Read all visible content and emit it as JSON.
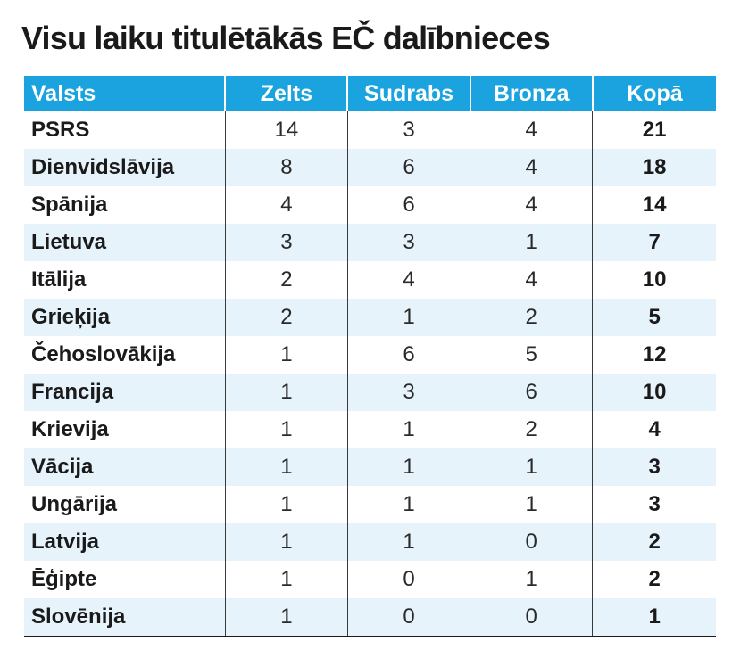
{
  "chart_data": {
    "type": "table",
    "title": "Visu laiku titulētākās EČ dalībnieces",
    "columns": [
      "Valsts",
      "Zelts",
      "Sudrabs",
      "Bronza",
      "Kopā"
    ],
    "rows": [
      [
        "PSRS",
        "14",
        "3",
        "4",
        "21"
      ],
      [
        "Dienvidslāvija",
        "8",
        "6",
        "4",
        "18"
      ],
      [
        "Spānija",
        "4",
        "6",
        "4",
        "14"
      ],
      [
        "Lietuva",
        "3",
        "3",
        "1",
        "7"
      ],
      [
        "Itālija",
        "2",
        "4",
        "4",
        "10"
      ],
      [
        "Grieķija",
        "2",
        "1",
        "2",
        "5"
      ],
      [
        "Čehoslovākija",
        "1",
        "6",
        "5",
        "12"
      ],
      [
        "Francija",
        "1",
        "3",
        "6",
        "10"
      ],
      [
        "Krievija",
        "1",
        "1",
        "2",
        "4"
      ],
      [
        "Vācija",
        "1",
        "1",
        "1",
        "3"
      ],
      [
        "Ungārija",
        "1",
        "1",
        "1",
        "3"
      ],
      [
        "Latvija",
        "1",
        "1",
        "0",
        "2"
      ],
      [
        "Ēģipte",
        "1",
        "0",
        "1",
        "2"
      ],
      [
        "Slovēnija",
        "1",
        "0",
        "0",
        "1"
      ]
    ],
    "colors": {
      "header_bg": "#1aa3df",
      "header_text": "#ffffff",
      "stripe_bg": "#e6f3fb"
    }
  }
}
